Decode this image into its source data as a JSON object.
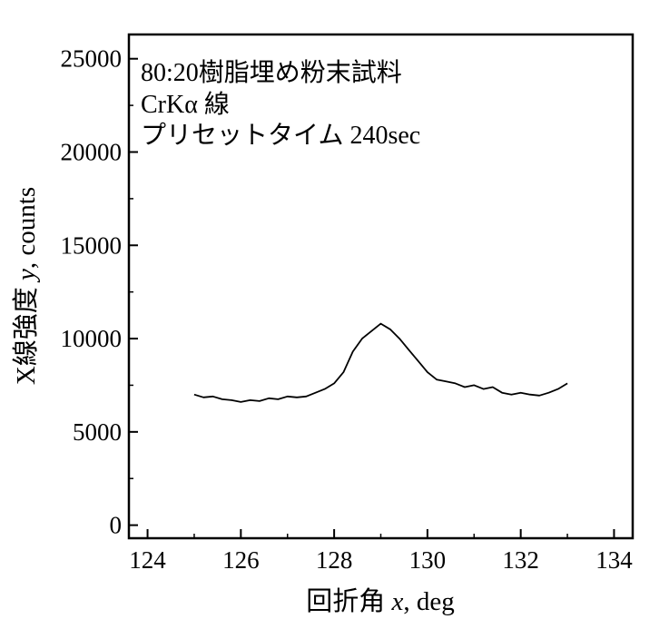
{
  "chart_data": {
    "type": "line",
    "title": "",
    "xlabel_main": "回折角 ",
    "xlabel_var": "x",
    "xlabel_unit": ", deg",
    "ylabel_main": "X線強度 ",
    "ylabel_var": "y",
    "ylabel_unit": ", counts",
    "xlim": [
      123.6,
      134.4
    ],
    "ylim": [
      -700,
      26300
    ],
    "xticks": [
      124,
      126,
      128,
      130,
      132,
      134
    ],
    "yticks": [
      0,
      5000,
      10000,
      15000,
      20000,
      25000
    ],
    "annotations": [
      "80:20樹脂埋め粉末試料",
      "CrKα 線",
      "プリセットタイム 240sec"
    ],
    "grid": false,
    "series": [
      {
        "color": "#000000",
        "x": [
          125.0,
          125.2,
          125.4,
          125.6,
          125.8,
          126.0,
          126.2,
          126.4,
          126.6,
          126.8,
          127.0,
          127.2,
          127.4,
          127.6,
          127.8,
          128.0,
          128.2,
          128.4,
          128.6,
          128.8,
          129.0,
          129.2,
          129.4,
          129.6,
          129.8,
          130.0,
          130.2,
          130.4,
          130.6,
          130.8,
          131.0,
          131.2,
          131.4,
          131.6,
          131.8,
          132.0,
          132.2,
          132.4,
          132.6,
          132.8,
          133.0
        ],
        "y": [
          7000,
          6850,
          6900,
          6750,
          6700,
          6600,
          6700,
          6650,
          6800,
          6750,
          6900,
          6850,
          6900,
          7100,
          7300,
          7600,
          8200,
          9300,
          10000,
          10400,
          10800,
          10500,
          10000,
          9400,
          8800,
          8200,
          7800,
          7700,
          7600,
          7400,
          7500,
          7300,
          7400,
          7100,
          7000,
          7100,
          7000,
          6950,
          7100,
          7300,
          7600
        ]
      }
    ]
  }
}
